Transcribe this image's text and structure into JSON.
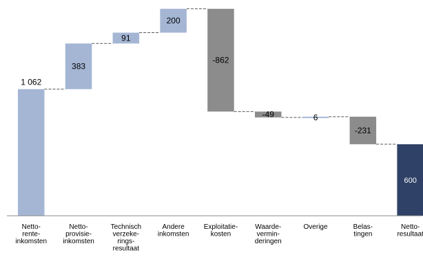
{
  "chart_data": {
    "type": "bar",
    "subtype": "waterfall",
    "title": "",
    "xlabel": "",
    "ylabel": "",
    "ylim": [
      0,
      2000
    ],
    "grid": false,
    "legend": "none",
    "categories": [
      "Netto-rente-inkomsten",
      "Netto-provisie-inkomsten",
      "Technisch verzekeringsresultaat",
      "Andere inkomsten",
      "Exploitatie-kosten",
      "Waarde-verminderingen",
      "Overige",
      "Belastingen",
      "Netto-resultaat"
    ],
    "category_label_lines": [
      [
        "Netto-",
        "rente-",
        "inkomsten"
      ],
      [
        "Netto-",
        "provisie-",
        "inkomsten"
      ],
      [
        "Technisch",
        "verzeke-",
        "rings-",
        "resultaat"
      ],
      [
        "Andere",
        "inkomsten"
      ],
      [
        "Exploitatie-",
        "kosten"
      ],
      [
        "Waarde-",
        "vermin-",
        "deringen"
      ],
      [
        "Overige"
      ],
      [
        "Belas-",
        "tingen"
      ],
      [
        "Netto-",
        "resultaat"
      ]
    ],
    "values": [
      1062,
      383,
      91,
      200,
      -862,
      -49,
      6,
      -231,
      600
    ],
    "value_labels": [
      "1 062",
      "383",
      "91",
      "200",
      "-862",
      "-49",
      "6",
      "-231",
      "600"
    ],
    "bar_kinds": [
      "total",
      "increase",
      "increase",
      "increase",
      "decrease",
      "decrease",
      "increase",
      "decrease",
      "total"
    ],
    "colors": {
      "increase": "#a4b6d4",
      "decrease": "#8c8c8c",
      "total_start": "#a4b6d4",
      "total_end": "#2f4166"
    }
  }
}
